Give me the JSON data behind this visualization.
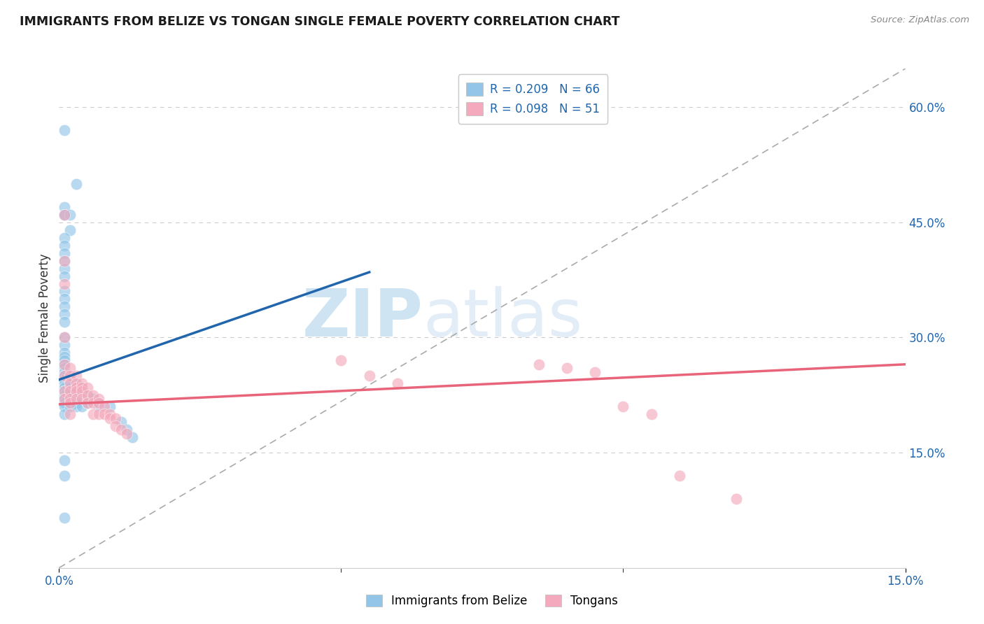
{
  "title": "IMMIGRANTS FROM BELIZE VS TONGAN SINGLE FEMALE POVERTY CORRELATION CHART",
  "source": "Source: ZipAtlas.com",
  "ylabel": "Single Female Poverty",
  "right_ytick_vals": [
    0.6,
    0.45,
    0.3,
    0.15
  ],
  "right_ytick_labels": [
    "60.0%",
    "45.0%",
    "30.0%",
    "15.0%"
  ],
  "xtick_vals": [
    0.0,
    0.15
  ],
  "xtick_labels": [
    "0.0%",
    "15.0%"
  ],
  "legend_blue_label": "R = 0.209   N = 66",
  "legend_pink_label": "R = 0.098   N = 51",
  "legend_bottom_blue": "Immigrants from Belize",
  "legend_bottom_pink": "Tongans",
  "blue_color": "#92C5E8",
  "pink_color": "#F4AABC",
  "blue_line_color": "#2166AC",
  "pink_line_color": "#E8647A",
  "dash_line_color": "#AAAAAA",
  "watermark_color": "#C8E0F4",
  "grid_color": "#CCCCCC",
  "xlim": [
    0.0,
    0.15
  ],
  "ylim": [
    0.0,
    0.65
  ],
  "blue_line": {
    "x0": 0.0,
    "y0": 0.245,
    "x1": 0.055,
    "y1": 0.385
  },
  "pink_line": {
    "x0": 0.0,
    "y0": 0.213,
    "x1": 0.15,
    "y1": 0.265
  },
  "dash_line": {
    "x0": 0.0,
    "y0": 0.0,
    "x1": 0.15,
    "y1": 0.65
  },
  "belize_x": [
    0.001,
    0.003,
    0.001,
    0.001,
    0.001,
    0.002,
    0.002,
    0.001,
    0.001,
    0.001,
    0.001,
    0.001,
    0.001,
    0.001,
    0.001,
    0.001,
    0.001,
    0.001,
    0.001,
    0.001,
    0.001,
    0.001,
    0.001,
    0.001,
    0.001,
    0.001,
    0.001,
    0.001,
    0.001,
    0.001,
    0.001,
    0.001,
    0.001,
    0.001,
    0.001,
    0.001,
    0.002,
    0.002,
    0.002,
    0.002,
    0.002,
    0.002,
    0.002,
    0.002,
    0.002,
    0.003,
    0.003,
    0.003,
    0.003,
    0.003,
    0.003,
    0.004,
    0.004,
    0.004,
    0.005,
    0.005,
    0.006,
    0.007,
    0.007,
    0.009,
    0.011,
    0.012,
    0.013,
    0.001,
    0.001,
    0.001
  ],
  "belize_y": [
    0.57,
    0.5,
    0.47,
    0.46,
    0.46,
    0.46,
    0.44,
    0.43,
    0.42,
    0.41,
    0.4,
    0.39,
    0.38,
    0.36,
    0.35,
    0.34,
    0.33,
    0.32,
    0.3,
    0.29,
    0.28,
    0.275,
    0.27,
    0.265,
    0.26,
    0.255,
    0.25,
    0.245,
    0.24,
    0.235,
    0.23,
    0.225,
    0.22,
    0.215,
    0.21,
    0.2,
    0.25,
    0.245,
    0.24,
    0.235,
    0.23,
    0.225,
    0.22,
    0.215,
    0.21,
    0.24,
    0.235,
    0.23,
    0.22,
    0.215,
    0.21,
    0.235,
    0.23,
    0.21,
    0.225,
    0.215,
    0.22,
    0.215,
    0.21,
    0.21,
    0.19,
    0.18,
    0.17,
    0.14,
    0.12,
    0.065
  ],
  "tongan_x": [
    0.001,
    0.001,
    0.001,
    0.001,
    0.001,
    0.001,
    0.001,
    0.001,
    0.002,
    0.002,
    0.002,
    0.002,
    0.002,
    0.002,
    0.002,
    0.003,
    0.003,
    0.003,
    0.003,
    0.003,
    0.004,
    0.004,
    0.004,
    0.004,
    0.005,
    0.005,
    0.005,
    0.006,
    0.006,
    0.006,
    0.007,
    0.007,
    0.007,
    0.008,
    0.008,
    0.009,
    0.009,
    0.01,
    0.01,
    0.011,
    0.012,
    0.05,
    0.055,
    0.06,
    0.085,
    0.09,
    0.095,
    0.1,
    0.105,
    0.11,
    0.12
  ],
  "tongan_y": [
    0.46,
    0.4,
    0.37,
    0.3,
    0.265,
    0.25,
    0.23,
    0.22,
    0.26,
    0.25,
    0.24,
    0.23,
    0.22,
    0.215,
    0.2,
    0.25,
    0.24,
    0.235,
    0.23,
    0.22,
    0.24,
    0.235,
    0.23,
    0.22,
    0.235,
    0.225,
    0.215,
    0.225,
    0.215,
    0.2,
    0.22,
    0.215,
    0.2,
    0.21,
    0.2,
    0.2,
    0.195,
    0.195,
    0.185,
    0.18,
    0.175,
    0.27,
    0.25,
    0.24,
    0.265,
    0.26,
    0.255,
    0.21,
    0.2,
    0.12,
    0.09
  ],
  "background_color": "#ffffff"
}
